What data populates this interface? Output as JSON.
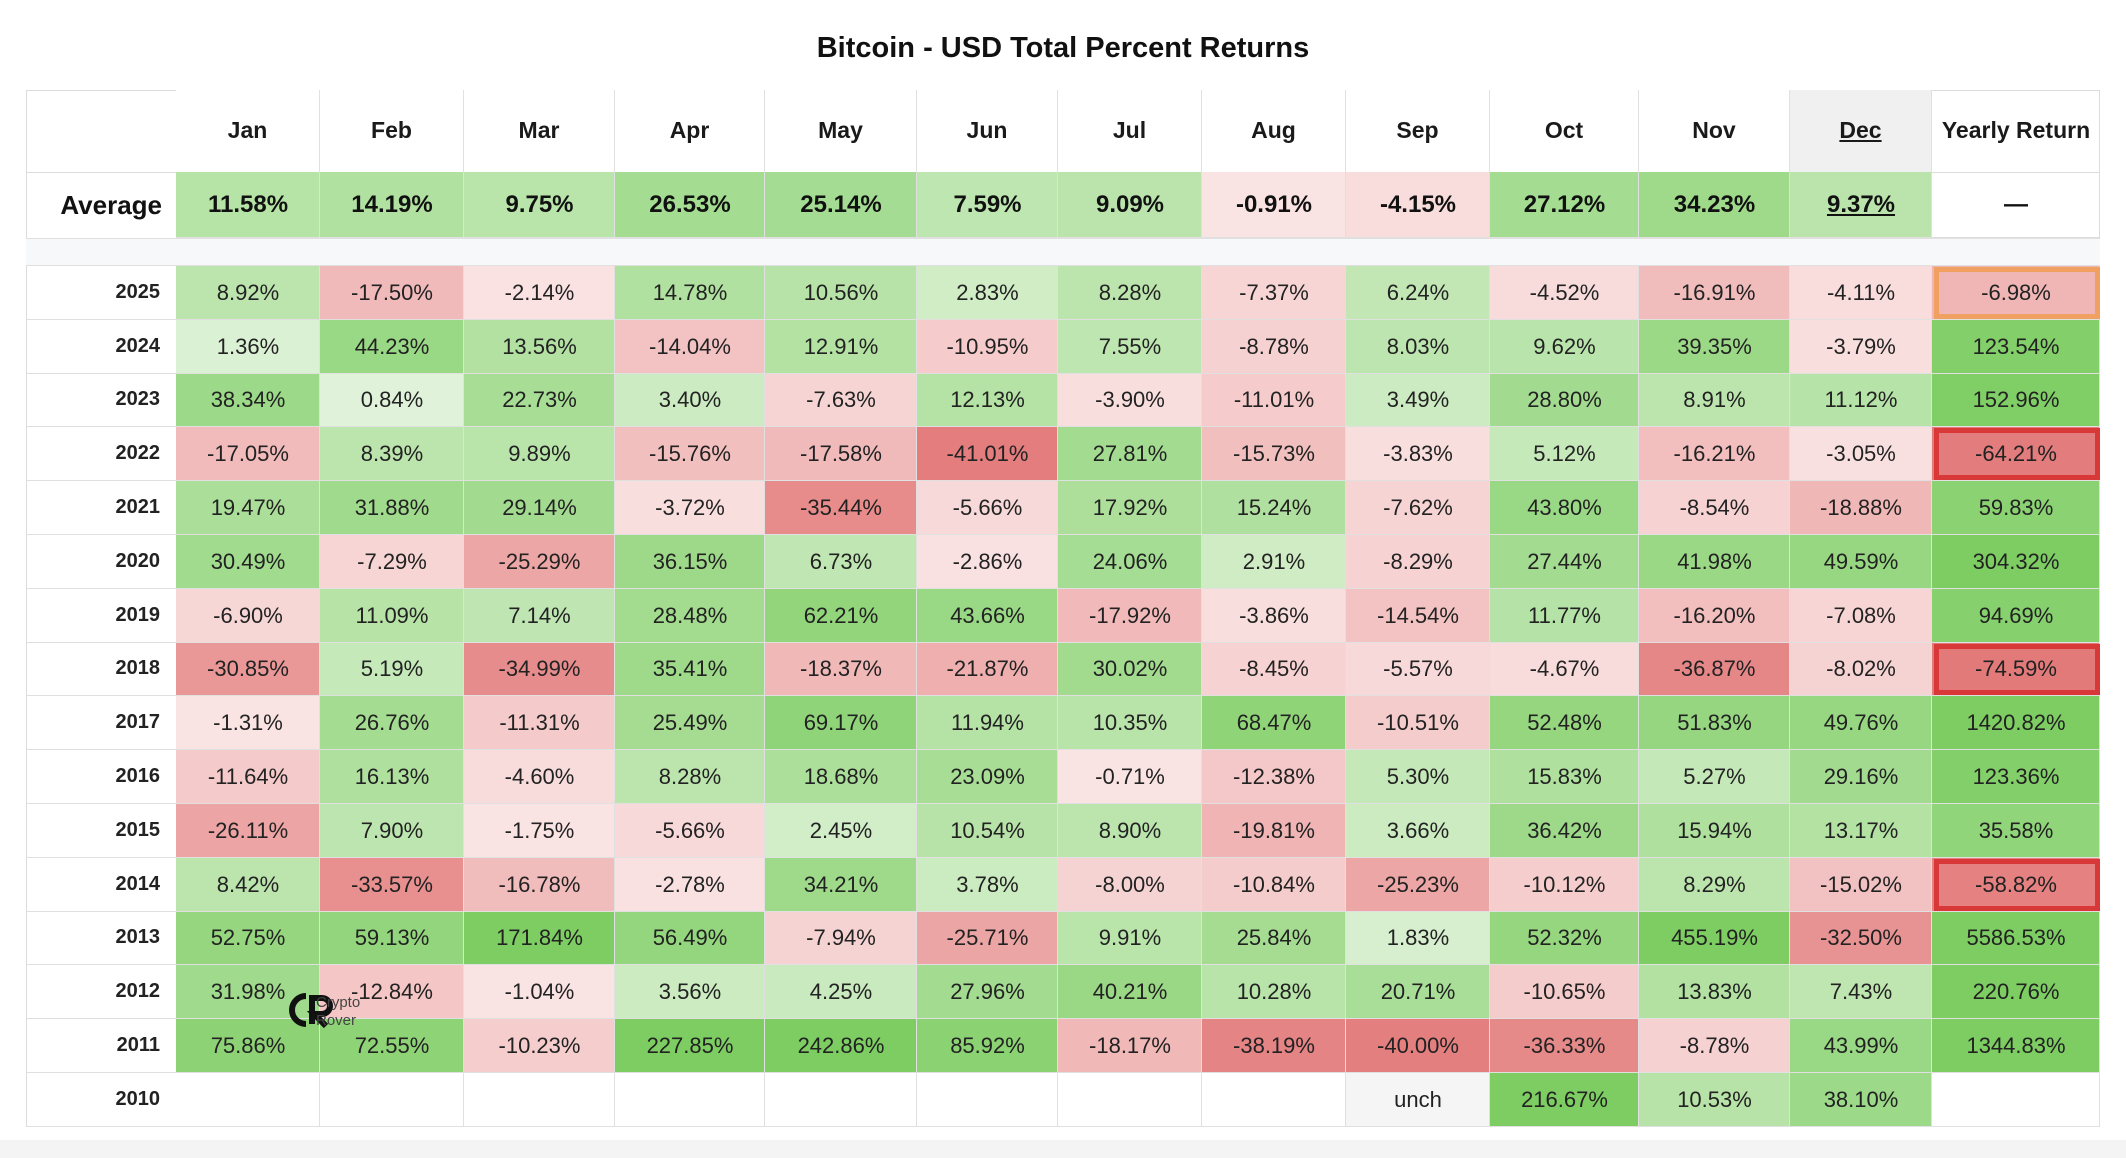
{
  "chart_data": {
    "type": "heatmap",
    "title": "Bitcoin - USD Total Percent Returns",
    "columns": [
      "Jan",
      "Feb",
      "Mar",
      "Apr",
      "May",
      "Jun",
      "Jul",
      "Aug",
      "Sep",
      "Oct",
      "Nov",
      "Dec"
    ],
    "yearly_header": "Yearly Return",
    "average_label": "Average",
    "average": {
      "values": [
        11.58,
        14.19,
        9.75,
        26.53,
        25.14,
        7.59,
        9.09,
        -0.91,
        -4.15,
        27.12,
        34.23,
        9.37
      ],
      "labels": [
        "11.58%",
        "14.19%",
        "9.75%",
        "26.53%",
        "25.14%",
        "7.59%",
        "9.09%",
        "-0.91%",
        "-4.15%",
        "27.12%",
        "34.23%",
        "9.37%"
      ],
      "yearly_label": "—"
    },
    "rows": [
      {
        "year": "2025",
        "values": [
          8.92,
          -17.5,
          -2.14,
          14.78,
          10.56,
          2.83,
          8.28,
          -7.37,
          6.24,
          -4.52,
          -16.91,
          -4.11
        ],
        "labels": [
          "8.92%",
          "-17.50%",
          "-2.14%",
          "14.78%",
          "10.56%",
          "2.83%",
          "8.28%",
          "-7.37%",
          "6.24%",
          "-4.52%",
          "-16.91%",
          "-4.11%"
        ],
        "yearly": -6.98,
        "yearly_label": "-6.98%"
      },
      {
        "year": "2024",
        "values": [
          1.36,
          44.23,
          13.56,
          -14.04,
          12.91,
          -10.95,
          7.55,
          -8.78,
          8.03,
          9.62,
          39.35,
          -3.79
        ],
        "labels": [
          "1.36%",
          "44.23%",
          "13.56%",
          "-14.04%",
          "12.91%",
          "-10.95%",
          "7.55%",
          "-8.78%",
          "8.03%",
          "9.62%",
          "39.35%",
          "-3.79%"
        ],
        "yearly": 123.54,
        "yearly_label": "123.54%"
      },
      {
        "year": "2023",
        "values": [
          38.34,
          0.84,
          22.73,
          3.4,
          -7.63,
          12.13,
          -3.9,
          -11.01,
          3.49,
          28.8,
          8.91,
          11.12
        ],
        "labels": [
          "38.34%",
          "0.84%",
          "22.73%",
          "3.40%",
          "-7.63%",
          "12.13%",
          "-3.90%",
          "-11.01%",
          "3.49%",
          "28.80%",
          "8.91%",
          "11.12%"
        ],
        "yearly": 152.96,
        "yearly_label": "152.96%"
      },
      {
        "year": "2022",
        "values": [
          -17.05,
          8.39,
          9.89,
          -15.76,
          -17.58,
          -41.01,
          27.81,
          -15.73,
          -3.83,
          5.12,
          -16.21,
          -3.05
        ],
        "labels": [
          "-17.05%",
          "8.39%",
          "9.89%",
          "-15.76%",
          "-17.58%",
          "-41.01%",
          "27.81%",
          "-15.73%",
          "-3.83%",
          "5.12%",
          "-16.21%",
          "-3.05%"
        ],
        "yearly": -64.21,
        "yearly_label": "-64.21%"
      },
      {
        "year": "2021",
        "values": [
          19.47,
          31.88,
          29.14,
          -3.72,
          -35.44,
          -5.66,
          17.92,
          15.24,
          -7.62,
          43.8,
          -8.54,
          -18.88
        ],
        "labels": [
          "19.47%",
          "31.88%",
          "29.14%",
          "-3.72%",
          "-35.44%",
          "-5.66%",
          "17.92%",
          "15.24%",
          "-7.62%",
          "43.80%",
          "-8.54%",
          "-18.88%"
        ],
        "yearly": 59.83,
        "yearly_label": "59.83%"
      },
      {
        "year": "2020",
        "values": [
          30.49,
          -7.29,
          -25.29,
          36.15,
          6.73,
          -2.86,
          24.06,
          2.91,
          -8.29,
          27.44,
          41.98,
          49.59
        ],
        "labels": [
          "30.49%",
          "-7.29%",
          "-25.29%",
          "36.15%",
          "6.73%",
          "-2.86%",
          "24.06%",
          "2.91%",
          "-8.29%",
          "27.44%",
          "41.98%",
          "49.59%"
        ],
        "yearly": 304.32,
        "yearly_label": "304.32%"
      },
      {
        "year": "2019",
        "values": [
          -6.9,
          11.09,
          7.14,
          28.48,
          62.21,
          43.66,
          -17.92,
          -3.86,
          -14.54,
          11.77,
          -16.2,
          -7.08
        ],
        "labels": [
          "-6.90%",
          "11.09%",
          "7.14%",
          "28.48%",
          "62.21%",
          "43.66%",
          "-17.92%",
          "-3.86%",
          "-14.54%",
          "11.77%",
          "-16.20%",
          "-7.08%"
        ],
        "yearly": 94.69,
        "yearly_label": "94.69%"
      },
      {
        "year": "2018",
        "values": [
          -30.85,
          5.19,
          -34.99,
          35.41,
          -18.37,
          -21.87,
          30.02,
          -8.45,
          -5.57,
          -4.67,
          -36.87,
          -8.02
        ],
        "labels": [
          "-30.85%",
          "5.19%",
          "-34.99%",
          "35.41%",
          "-18.37%",
          "-21.87%",
          "30.02%",
          "-8.45%",
          "-5.57%",
          "-4.67%",
          "-36.87%",
          "-8.02%"
        ],
        "yearly": -74.59,
        "yearly_label": "-74.59%"
      },
      {
        "year": "2017",
        "values": [
          -1.31,
          26.76,
          -11.31,
          25.49,
          69.17,
          11.94,
          10.35,
          68.47,
          -10.51,
          52.48,
          51.83,
          49.76
        ],
        "labels": [
          "-1.31%",
          "26.76%",
          "-11.31%",
          "25.49%",
          "69.17%",
          "11.94%",
          "10.35%",
          "68.47%",
          "-10.51%",
          "52.48%",
          "51.83%",
          "49.76%"
        ],
        "yearly": 1420.82,
        "yearly_label": "1420.82%"
      },
      {
        "year": "2016",
        "values": [
          -11.64,
          16.13,
          -4.6,
          8.28,
          18.68,
          23.09,
          -0.71,
          -12.38,
          5.3,
          15.83,
          5.27,
          29.16
        ],
        "labels": [
          "-11.64%",
          "16.13%",
          "-4.60%",
          "8.28%",
          "18.68%",
          "23.09%",
          "-0.71%",
          "-12.38%",
          "5.30%",
          "15.83%",
          "5.27%",
          "29.16%"
        ],
        "yearly": 123.36,
        "yearly_label": "123.36%"
      },
      {
        "year": "2015",
        "values": [
          -26.11,
          7.9,
          -1.75,
          -5.66,
          2.45,
          10.54,
          8.9,
          -19.81,
          3.66,
          36.42,
          15.94,
          13.17
        ],
        "labels": [
          "-26.11%",
          "7.90%",
          "-1.75%",
          "-5.66%",
          "2.45%",
          "10.54%",
          "8.90%",
          "-19.81%",
          "3.66%",
          "36.42%",
          "15.94%",
          "13.17%"
        ],
        "yearly": 35.58,
        "yearly_label": "35.58%"
      },
      {
        "year": "2014",
        "values": [
          8.42,
          -33.57,
          -16.78,
          -2.78,
          34.21,
          3.78,
          -8.0,
          -10.84,
          -25.23,
          -10.12,
          8.29,
          -15.02
        ],
        "labels": [
          "8.42%",
          "-33.57%",
          "-16.78%",
          "-2.78%",
          "34.21%",
          "3.78%",
          "-8.00%",
          "-10.84%",
          "-25.23%",
          "-10.12%",
          "8.29%",
          "-15.02%"
        ],
        "yearly": -58.82,
        "yearly_label": "-58.82%"
      },
      {
        "year": "2013",
        "values": [
          52.75,
          59.13,
          171.84,
          56.49,
          -7.94,
          -25.71,
          9.91,
          25.84,
          1.83,
          52.32,
          455.19,
          -32.5
        ],
        "labels": [
          "52.75%",
          "59.13%",
          "171.84%",
          "56.49%",
          "-7.94%",
          "-25.71%",
          "9.91%",
          "25.84%",
          "1.83%",
          "52.32%",
          "455.19%",
          "-32.50%"
        ],
        "yearly": 5586.53,
        "yearly_label": "5586.53%"
      },
      {
        "year": "2012",
        "values": [
          31.98,
          -12.84,
          -1.04,
          3.56,
          4.25,
          27.96,
          40.21,
          10.28,
          20.71,
          -10.65,
          13.83,
          7.43
        ],
        "labels": [
          "31.98%",
          "-12.84%",
          "-1.04%",
          "3.56%",
          "4.25%",
          "27.96%",
          "40.21%",
          "10.28%",
          "20.71%",
          "-10.65%",
          "13.83%",
          "7.43%"
        ],
        "yearly": 220.76,
        "yearly_label": "220.76%"
      },
      {
        "year": "2011",
        "values": [
          75.86,
          72.55,
          -10.23,
          227.85,
          242.86,
          85.92,
          -18.17,
          -38.19,
          -40.0,
          -36.33,
          -8.78,
          43.99
        ],
        "labels": [
          "75.86%",
          "72.55%",
          "-10.23%",
          "227.85%",
          "242.86%",
          "85.92%",
          "-18.17%",
          "-38.19%",
          "-40.00%",
          "-36.33%",
          "-8.78%",
          "43.99%"
        ],
        "yearly": 1344.83,
        "yearly_label": "1344.83%"
      },
      {
        "year": "2010",
        "values": [
          null,
          null,
          null,
          null,
          null,
          null,
          null,
          null,
          0,
          216.67,
          10.53,
          38.1
        ],
        "labels": [
          "",
          "",
          "",
          "",
          "",
          "",
          "",
          "",
          "unch",
          "216.67%",
          "10.53%",
          "38.10%"
        ],
        "yearly": null,
        "yearly_label": ""
      }
    ],
    "highlighted_yearly": [
      {
        "year": "2025",
        "style": "orange"
      },
      {
        "year": "2022",
        "style": "red"
      },
      {
        "year": "2018",
        "style": "red"
      },
      {
        "year": "2014",
        "style": "red"
      }
    ],
    "colors": {
      "positive_light": "#eef8ea",
      "positive_strong": "#7dcd62",
      "negative_light": "#fbe8e8",
      "negative_strong": "#e37a7a",
      "neutral": "#f3f3f3",
      "header_bg": "#ffffff",
      "dec_header_bg": "#f0f0f0",
      "highlight_red": "#d93838",
      "highlight_orange": "#f0a060"
    }
  },
  "watermark": {
    "line1": "Crypto",
    "line2": "Rover"
  }
}
